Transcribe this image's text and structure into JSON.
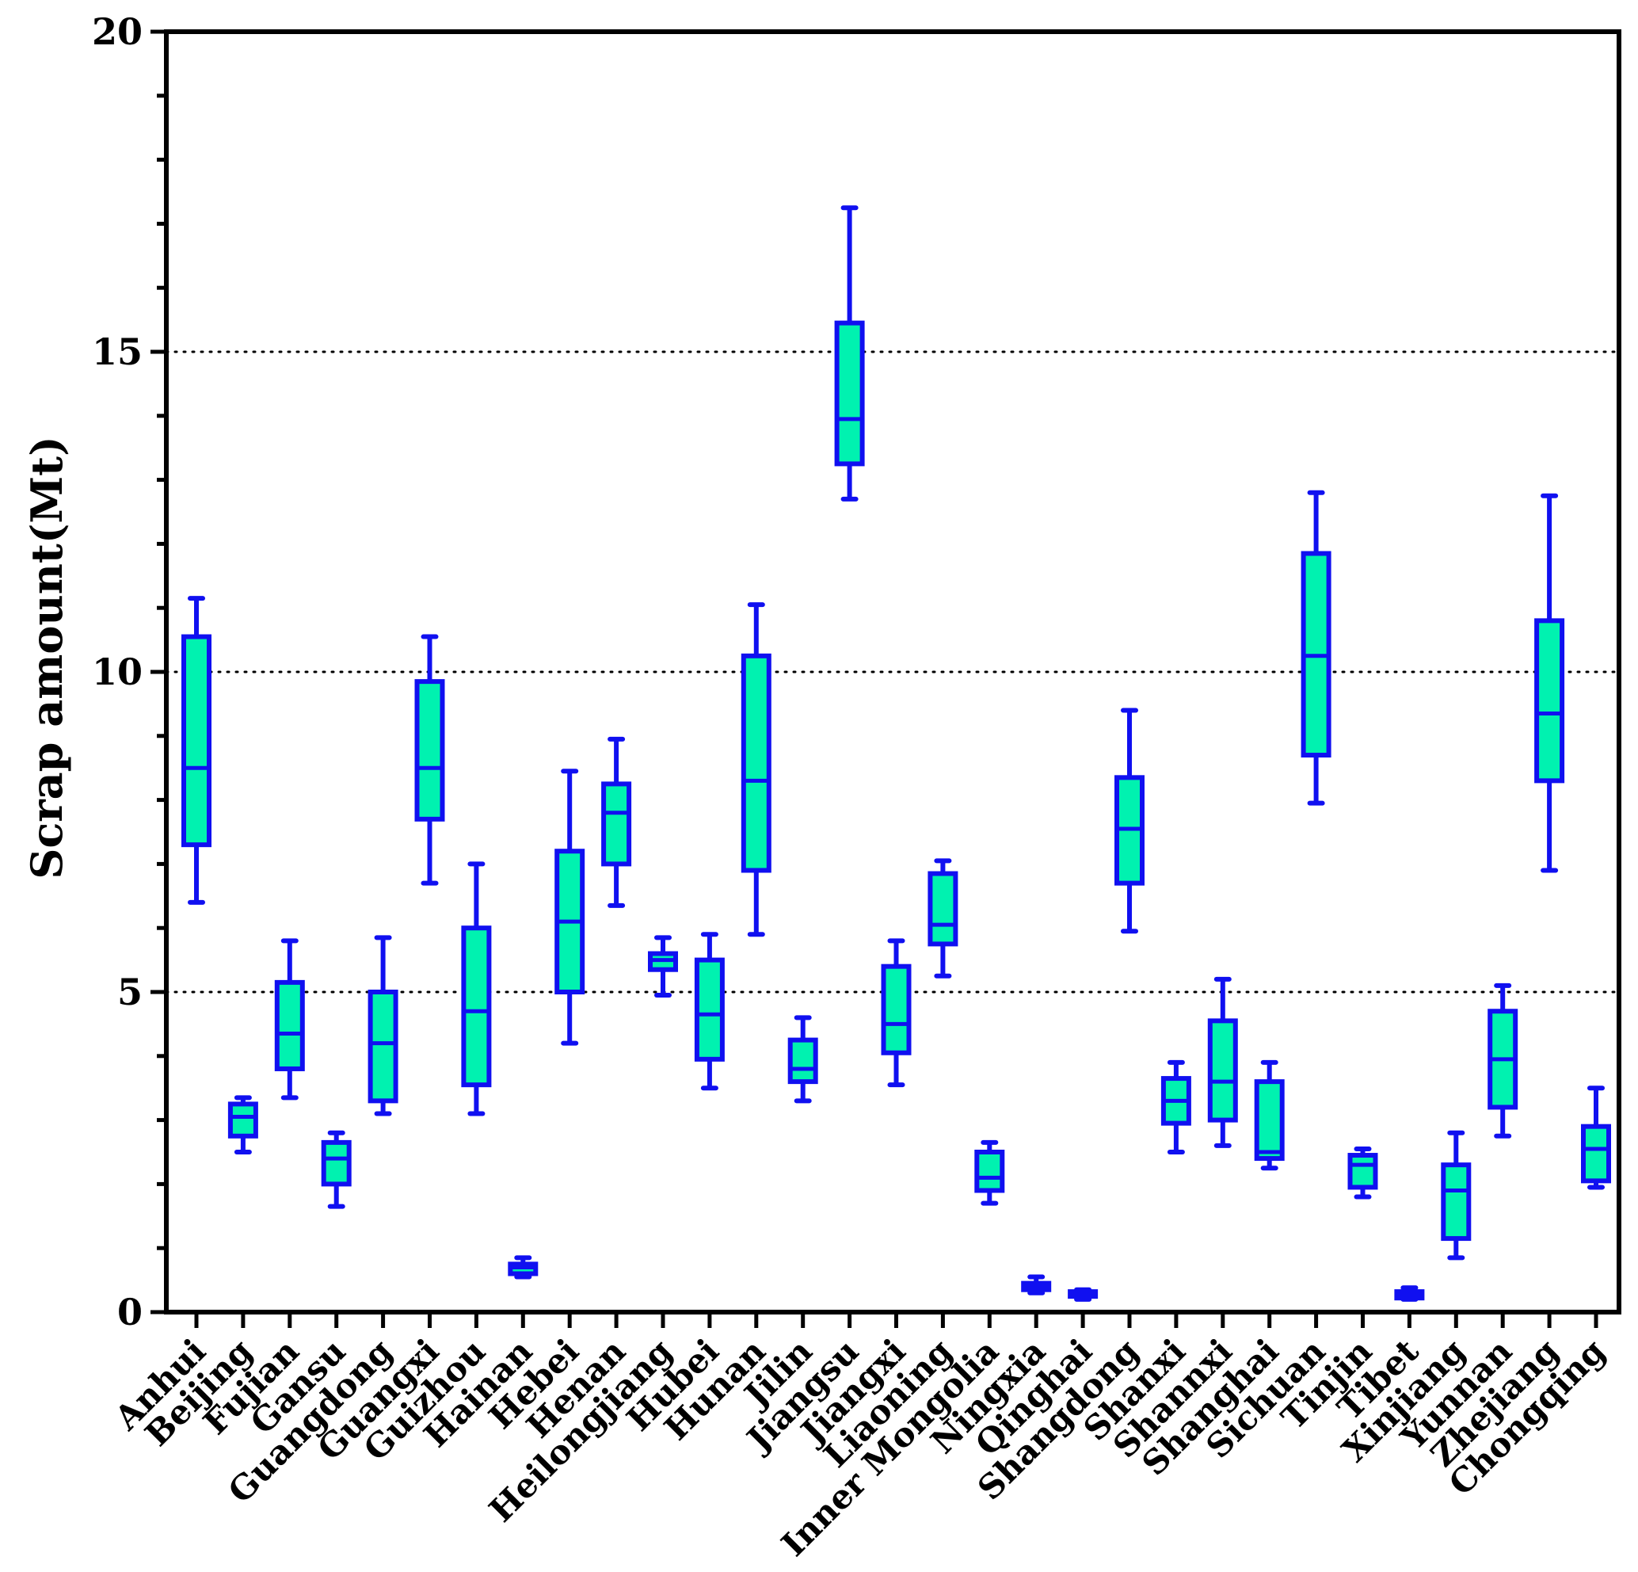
{
  "chart_data": {
    "type": "box",
    "ylabel": "Scrap amount(Mt)",
    "xlabel": "",
    "ylim": [
      0,
      20
    ],
    "yticks": [
      0,
      5,
      10,
      15,
      20
    ],
    "grid": "dotted horizontal at 5, 10, 15",
    "colors": {
      "box_fill": "#00F2B0",
      "box_stroke": "#1010F0",
      "axis": "#000000",
      "grid": "#000000"
    },
    "categories": [
      "Anhui",
      "Beijing",
      "Fujian",
      "Gansu",
      "Guangdong",
      "Guangxi",
      "Guizhou",
      "Hainan",
      "Hebei",
      "Henan",
      "Heilongjiang",
      "Hubei",
      "Hunan",
      "Jilin",
      "Jiangsu",
      "Jiangxi",
      "Liaoning",
      "Inner Mongolia",
      "Ningxia",
      "Qinghai",
      "Shangdong",
      "Shanxi",
      "Shannxi",
      "Shanghai",
      "Sichuan",
      "Tinjin",
      "Tibet",
      "Xinjiang",
      "Yunnan",
      "Zhejiang",
      "Chongqing"
    ],
    "series": [
      {
        "name": "Anhui",
        "min": 6.4,
        "q1": 7.3,
        "median": 8.5,
        "q3": 10.55,
        "max": 11.15
      },
      {
        "name": "Beijing",
        "min": 2.5,
        "q1": 2.75,
        "median": 3.05,
        "q3": 3.25,
        "max": 3.35
      },
      {
        "name": "Fujian",
        "min": 3.35,
        "q1": 3.8,
        "median": 4.35,
        "q3": 5.15,
        "max": 5.8
      },
      {
        "name": "Gansu",
        "min": 1.65,
        "q1": 2.0,
        "median": 2.4,
        "q3": 2.65,
        "max": 2.8
      },
      {
        "name": "Guangdong",
        "min": 3.1,
        "q1": 3.3,
        "median": 4.2,
        "q3": 5.0,
        "max": 5.85
      },
      {
        "name": "Guangxi",
        "min": 6.7,
        "q1": 7.7,
        "median": 8.5,
        "q3": 9.85,
        "max": 10.55
      },
      {
        "name": "Guizhou",
        "min": 3.1,
        "q1": 3.55,
        "median": 4.7,
        "q3": 6.0,
        "max": 7.0
      },
      {
        "name": "Hainan",
        "min": 0.55,
        "q1": 0.6,
        "median": 0.7,
        "q3": 0.75,
        "max": 0.85
      },
      {
        "name": "Hebei",
        "min": 4.2,
        "q1": 5.0,
        "median": 6.1,
        "q3": 7.2,
        "max": 8.45
      },
      {
        "name": "Henan",
        "min": 6.35,
        "q1": 7.0,
        "median": 7.8,
        "q3": 8.25,
        "max": 8.95
      },
      {
        "name": "Heilongjiang",
        "min": 4.95,
        "q1": 5.35,
        "median": 5.5,
        "q3": 5.6,
        "max": 5.85
      },
      {
        "name": "Hubei",
        "min": 3.5,
        "q1": 3.95,
        "median": 4.65,
        "q3": 5.5,
        "max": 5.9
      },
      {
        "name": "Hunan",
        "min": 5.9,
        "q1": 6.9,
        "median": 8.3,
        "q3": 10.25,
        "max": 11.05
      },
      {
        "name": "Jilin",
        "min": 3.3,
        "q1": 3.6,
        "median": 3.8,
        "q3": 4.25,
        "max": 4.6
      },
      {
        "name": "Jiangsu",
        "min": 12.7,
        "q1": 13.25,
        "median": 13.95,
        "q3": 15.45,
        "max": 17.25
      },
      {
        "name": "Jiangxi",
        "min": 3.55,
        "q1": 4.05,
        "median": 4.5,
        "q3": 5.4,
        "max": 5.8
      },
      {
        "name": "Liaoning",
        "min": 5.25,
        "q1": 5.75,
        "median": 6.05,
        "q3": 6.85,
        "max": 7.05
      },
      {
        "name": "Inner Mongolia",
        "min": 1.7,
        "q1": 1.9,
        "median": 2.1,
        "q3": 2.5,
        "max": 2.65
      },
      {
        "name": "Ningxia",
        "min": 0.3,
        "q1": 0.35,
        "median": 0.4,
        "q3": 0.45,
        "max": 0.55
      },
      {
        "name": "Qinghai",
        "min": 0.2,
        "q1": 0.25,
        "median": 0.28,
        "q3": 0.32,
        "max": 0.35
      },
      {
        "name": "Shangdong",
        "min": 5.95,
        "q1": 6.7,
        "median": 7.55,
        "q3": 8.35,
        "max": 9.4
      },
      {
        "name": "Shanxi",
        "min": 2.5,
        "q1": 2.95,
        "median": 3.3,
        "q3": 3.65,
        "max": 3.9
      },
      {
        "name": "Shannxi",
        "min": 2.6,
        "q1": 3.0,
        "median": 3.6,
        "q3": 4.55,
        "max": 5.2
      },
      {
        "name": "Shanghai",
        "min": 2.25,
        "q1": 2.4,
        "median": 2.5,
        "q3": 3.6,
        "max": 3.9
      },
      {
        "name": "Sichuan",
        "min": 7.95,
        "q1": 8.7,
        "median": 10.25,
        "q3": 11.85,
        "max": 12.8
      },
      {
        "name": "Tinjin",
        "min": 1.8,
        "q1": 1.95,
        "median": 2.3,
        "q3": 2.45,
        "max": 2.55
      },
      {
        "name": "Tibet",
        "min": 0.2,
        "q1": 0.22,
        "median": 0.27,
        "q3": 0.32,
        "max": 0.38
      },
      {
        "name": "Xinjiang",
        "min": 0.85,
        "q1": 1.15,
        "median": 1.9,
        "q3": 2.3,
        "max": 2.8
      },
      {
        "name": "Yunnan",
        "min": 2.75,
        "q1": 3.2,
        "median": 3.95,
        "q3": 4.7,
        "max": 5.1
      },
      {
        "name": "Zhejiang",
        "min": 6.9,
        "q1": 8.3,
        "median": 9.35,
        "q3": 10.8,
        "max": 12.75
      },
      {
        "name": "Chongqing",
        "min": 1.95,
        "q1": 2.05,
        "median": 2.55,
        "q3": 2.9,
        "max": 3.5
      }
    ]
  }
}
